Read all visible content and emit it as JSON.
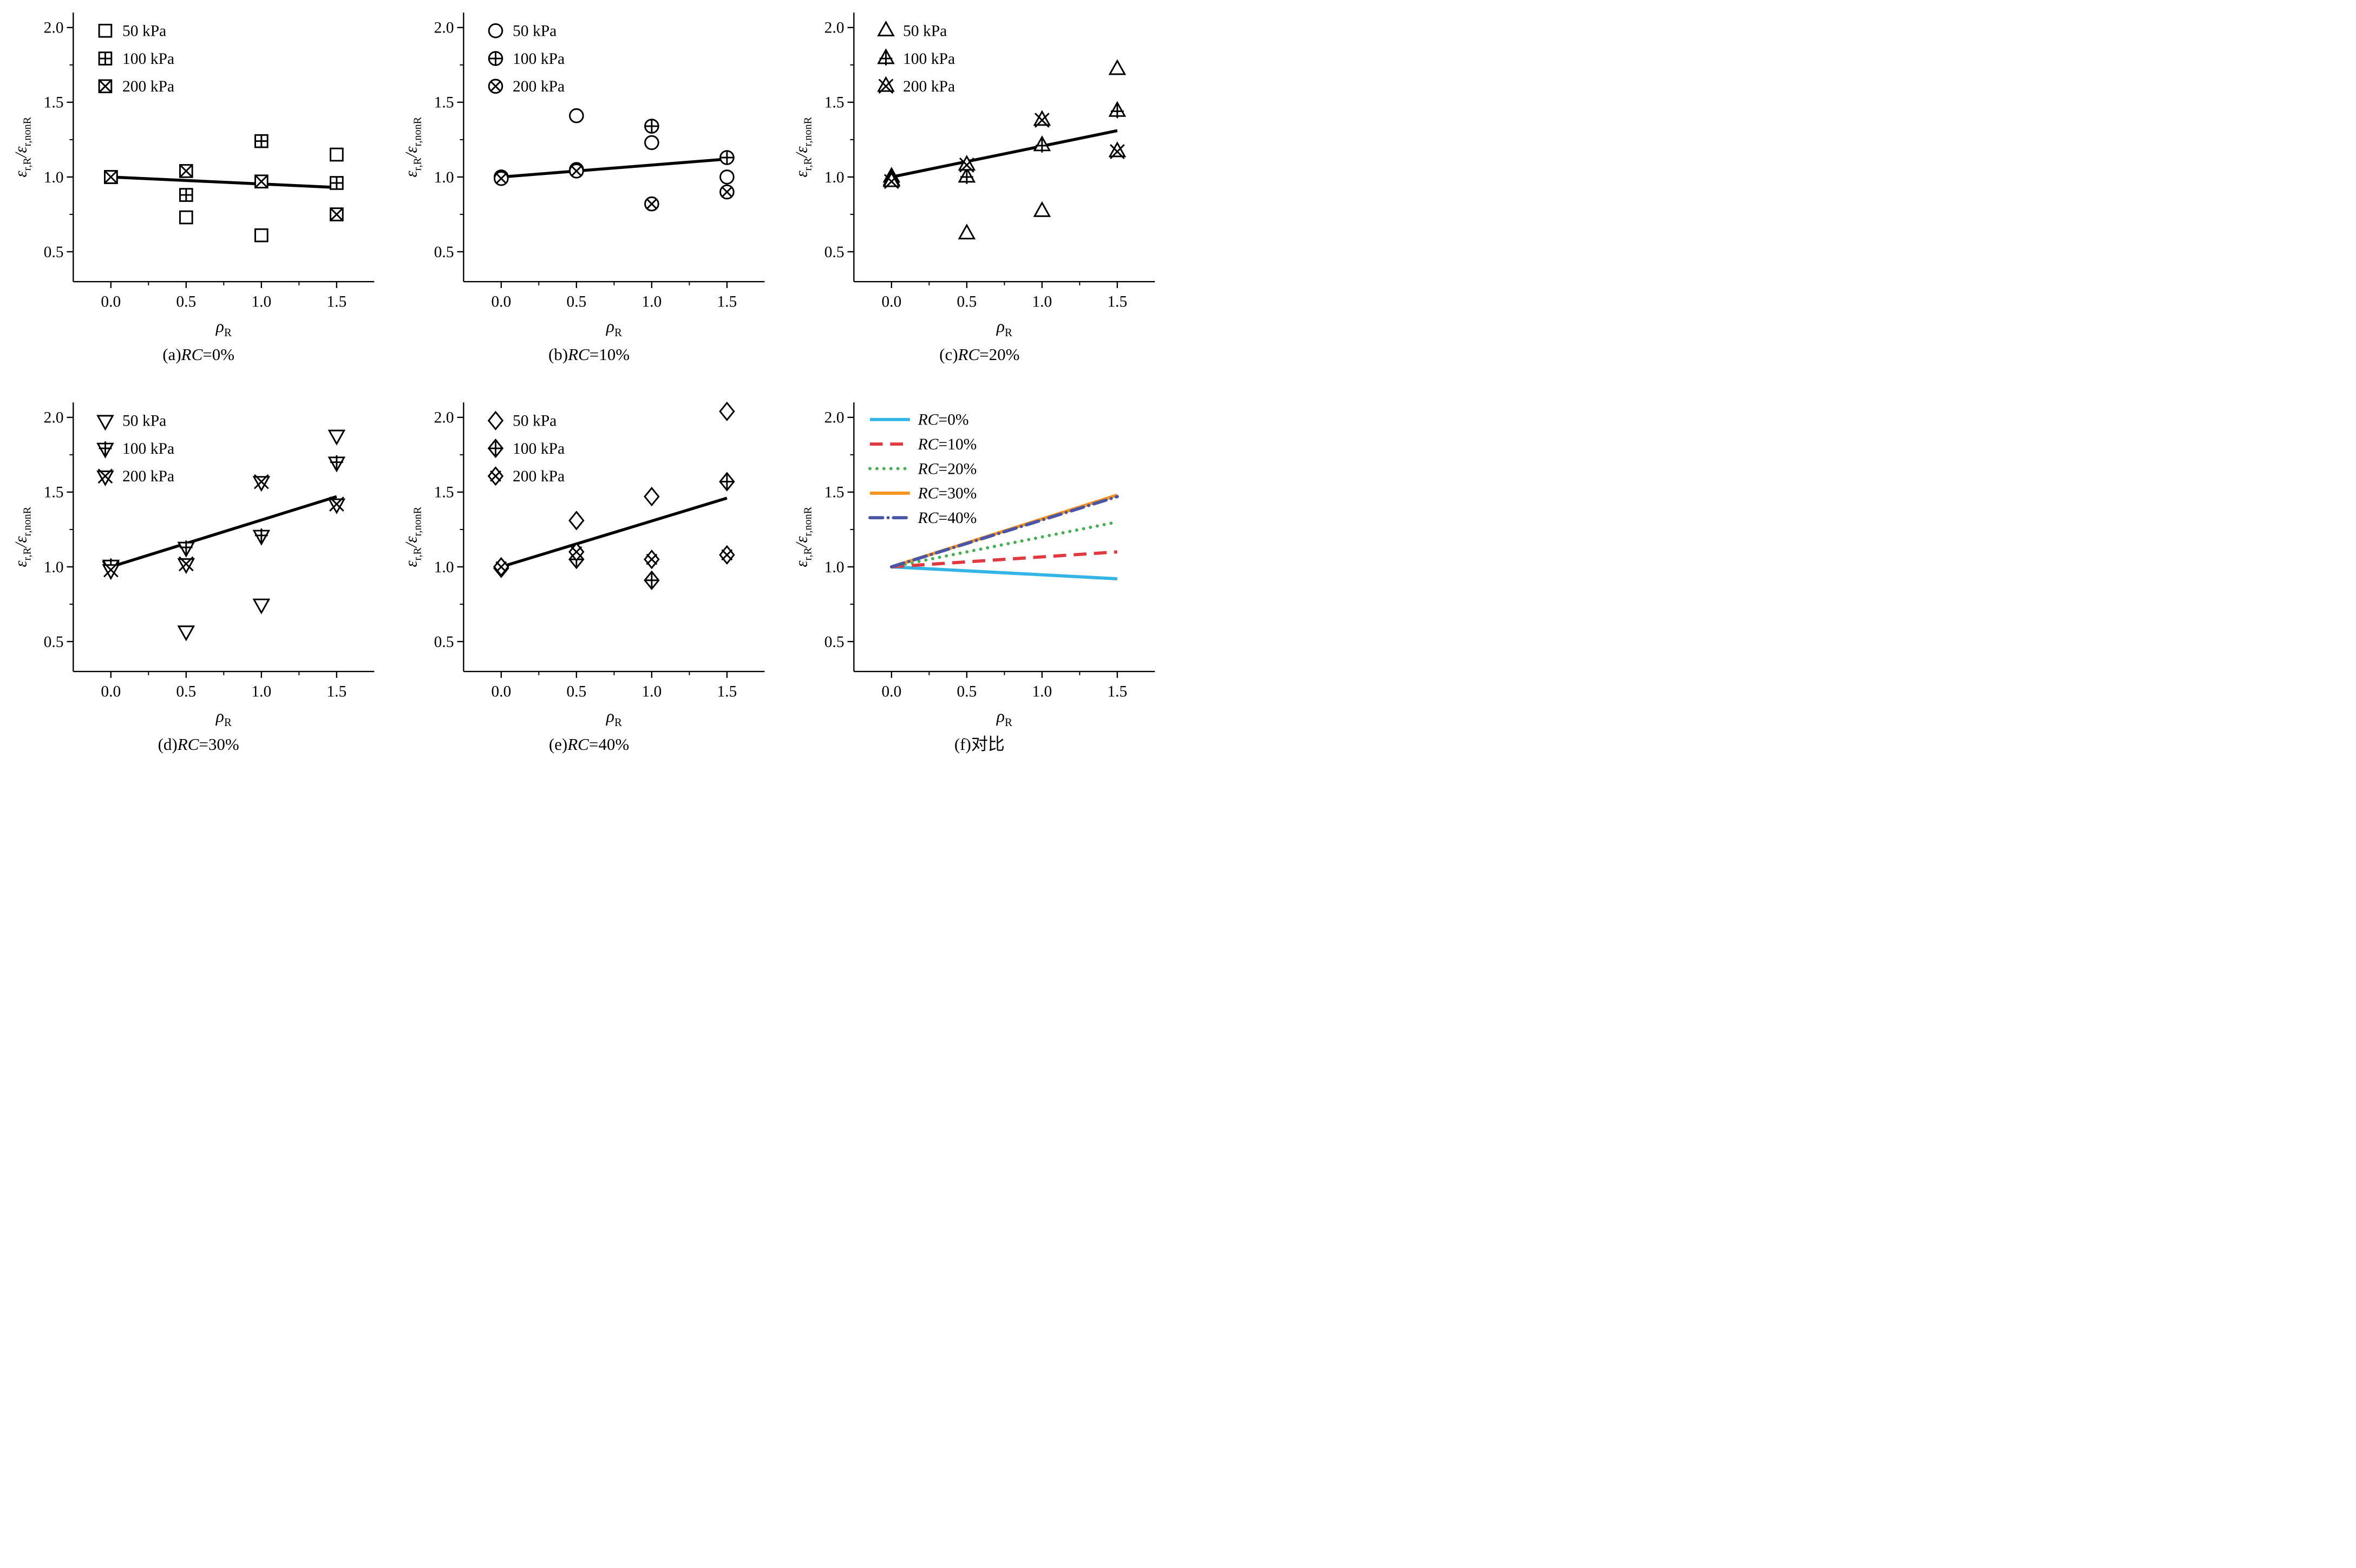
{
  "colors": {
    "foreground": "#000000",
    "background": "#ffffff",
    "fit_line": "#000000",
    "marker_stroke": "#000000"
  },
  "axes": {
    "xlabel_tokens": [
      {
        "t": "ρ",
        "style": "italic"
      },
      {
        "t": "R",
        "sub": true
      }
    ],
    "ylabel_tokens": [
      {
        "t": "ε",
        "style": "italic"
      },
      {
        "t": "r,R",
        "sub": true
      },
      {
        "t": "/",
        "style": "italic"
      },
      {
        "t": "ε",
        "style": "italic"
      },
      {
        "t": "r,nonR",
        "sub": true
      }
    ],
    "xtick_labels": [
      "0.0",
      "0.5",
      "1.0",
      "1.5"
    ],
    "xtick_values": [
      0,
      0.5,
      1,
      1.5
    ],
    "ytick_labels": [
      "0.5",
      "1.0",
      "1.5",
      "2.0"
    ],
    "ytick_values": [
      0.5,
      1,
      1.5,
      2
    ],
    "xminor_values": [
      0.25,
      0.75,
      1.25
    ],
    "yminor_values": [
      0.75,
      1.25,
      1.75
    ],
    "xrange": [
      -0.25,
      1.75
    ],
    "yrange": [
      0.3,
      2.1
    ]
  },
  "chart_data": [
    {
      "id": "a",
      "type": "scatter",
      "marker_base": "square",
      "caption": {
        "pre": "(a)",
        "it": "RC",
        "post": "=0%"
      },
      "x": [
        0,
        0.5,
        1,
        1.5
      ],
      "series": [
        {
          "name": "50 kPa",
          "variant": "open",
          "values": [
            1.0,
            0.73,
            0.61,
            1.15
          ]
        },
        {
          "name": "100 kPa",
          "variant": "plus",
          "values": [
            1.0,
            0.88,
            1.24,
            0.96
          ]
        },
        {
          "name": "200 kPa",
          "variant": "x",
          "values": [
            1.0,
            1.04,
            0.97,
            0.75
          ]
        }
      ],
      "fit_line": {
        "x": [
          0,
          1.5
        ],
        "y": [
          1.0,
          0.93
        ]
      }
    },
    {
      "id": "b",
      "type": "scatter",
      "marker_base": "circle",
      "caption": {
        "pre": "(b)",
        "it": "RC",
        "post": "=10%"
      },
      "x": [
        0,
        0.5,
        1,
        1.5
      ],
      "series": [
        {
          "name": "50 kPa",
          "variant": "open",
          "values": [
            1.0,
            1.41,
            1.23,
            1.0
          ]
        },
        {
          "name": "100 kPa",
          "variant": "plus",
          "values": [
            1.0,
            1.05,
            1.34,
            1.13
          ]
        },
        {
          "name": "200 kPa",
          "variant": "x",
          "values": [
            0.99,
            1.04,
            0.82,
            0.9
          ]
        }
      ],
      "fit_line": {
        "x": [
          0,
          1.5
        ],
        "y": [
          1.0,
          1.12
        ]
      }
    },
    {
      "id": "c",
      "type": "scatter",
      "marker_base": "triangle-up",
      "caption": {
        "pre": "(c)",
        "it": "RC",
        "post": "=20%"
      },
      "x": [
        0,
        0.5,
        1,
        1.5
      ],
      "series": [
        {
          "name": "50 kPa",
          "variant": "open",
          "values": [
            1.0,
            0.62,
            0.77,
            1.72
          ]
        },
        {
          "name": "100 kPa",
          "variant": "plus",
          "values": [
            0.98,
            1.0,
            1.21,
            1.44
          ]
        },
        {
          "name": "200 kPa",
          "variant": "x",
          "values": [
            0.97,
            1.08,
            1.38,
            1.17
          ]
        }
      ],
      "fit_line": {
        "x": [
          0,
          1.5
        ],
        "y": [
          1.0,
          1.31
        ]
      }
    },
    {
      "id": "d",
      "type": "scatter",
      "marker_base": "triangle-down",
      "caption": {
        "pre": "(d)",
        "it": "RC",
        "post": "=30%"
      },
      "x": [
        0,
        0.5,
        1,
        1.5
      ],
      "series": [
        {
          "name": "50 kPa",
          "variant": "open",
          "values": [
            1.0,
            0.57,
            0.75,
            1.88
          ]
        },
        {
          "name": "100 kPa",
          "variant": "plus",
          "values": [
            1.01,
            1.13,
            1.21,
            1.7
          ]
        },
        {
          "name": "200 kPa",
          "variant": "x",
          "values": [
            0.98,
            1.02,
            1.57,
            1.42
          ]
        }
      ],
      "fit_line": {
        "x": [
          0,
          1.5
        ],
        "y": [
          1.0,
          1.47
        ]
      }
    },
    {
      "id": "e",
      "type": "scatter",
      "marker_base": "diamond",
      "caption": {
        "pre": "(e)",
        "it": "RC",
        "post": "=40%"
      },
      "x": [
        0,
        0.5,
        1,
        1.5
      ],
      "series": [
        {
          "name": "50 kPa",
          "variant": "open",
          "values": [
            1.0,
            1.31,
            1.47,
            2.04
          ]
        },
        {
          "name": "100 kPa",
          "variant": "plus",
          "values": [
            0.99,
            1.05,
            0.91,
            1.57
          ]
        },
        {
          "name": "200 kPa",
          "variant": "x",
          "values": [
            1.0,
            1.1,
            1.05,
            1.08
          ]
        }
      ],
      "fit_line": {
        "x": [
          0,
          1.5
        ],
        "y": [
          1.0,
          1.46
        ]
      }
    },
    {
      "id": "f",
      "type": "line",
      "caption": {
        "pre": "(f)",
        "it": "",
        "post": "对比"
      },
      "x": [
        0,
        1.5
      ],
      "series": [
        {
          "label_tokens": [
            {
              "t": "RC",
              "style": "italic"
            },
            {
              "t": "=0%"
            }
          ],
          "color": "#35b5e5",
          "dash": "solid",
          "y": [
            1.0,
            0.92
          ]
        },
        {
          "label_tokens": [
            {
              "t": "RC",
              "style": "italic"
            },
            {
              "t": "=10%"
            }
          ],
          "color": "#e0393f",
          "dash": "dashed",
          "y": [
            1.0,
            1.1
          ]
        },
        {
          "label_tokens": [
            {
              "t": "RC",
              "style": "italic"
            },
            {
              "t": "=20%"
            }
          ],
          "color": "#45b054",
          "dash": "dotted",
          "y": [
            1.0,
            1.3
          ]
        },
        {
          "label_tokens": [
            {
              "t": "RC",
              "style": "italic"
            },
            {
              "t": "=30%"
            }
          ],
          "color": "#f79420",
          "dash": "solid",
          "y": [
            1.0,
            1.48
          ]
        },
        {
          "label_tokens": [
            {
              "t": "RC",
              "style": "italic"
            },
            {
              "t": "=40%"
            }
          ],
          "color": "#4a55a5",
          "dash": "dashdot",
          "y": [
            1.0,
            1.47
          ]
        }
      ]
    }
  ]
}
